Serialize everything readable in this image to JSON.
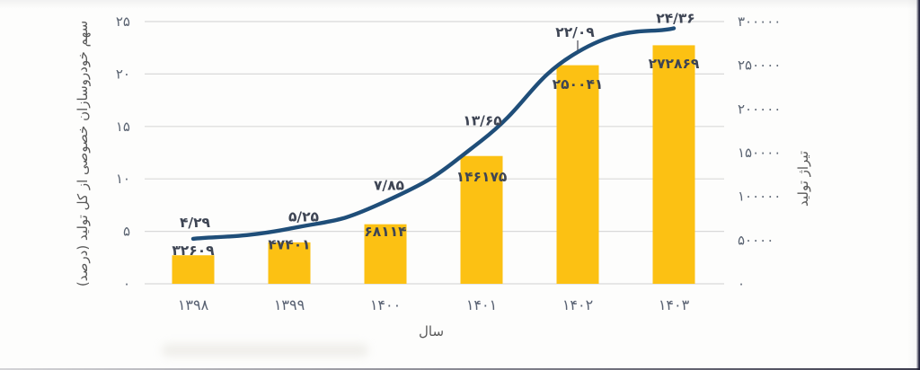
{
  "page": {
    "background": "#fdfdfc",
    "bezel_color": "#24243e"
  },
  "chart_data": {
    "type": "combo",
    "title": "",
    "legend": "none",
    "grid": true,
    "categories": [
      "۱۳۹۸",
      "۱۳۹۹",
      "۱۴۰۰",
      "۱۴۰۱",
      "۱۴۰۲",
      "۱۴۰۳"
    ],
    "x_axis": {
      "title": "سال"
    },
    "left_axis": {
      "title": "سهم خودروسازان خصوصی از کل تولید (درصد)",
      "range": [
        0,
        25
      ],
      "tick_values": [
        25,
        20,
        15,
        10,
        5,
        0
      ],
      "tick_labels": [
        "۲۵",
        "۲۰",
        "۱۵",
        "۱۰",
        "۵",
        "۰"
      ]
    },
    "right_axis": {
      "title": "تیراژ تولید",
      "range": [
        0,
        300000
      ],
      "tick_values": [
        300000,
        250000,
        200000,
        150000,
        100000,
        50000,
        0
      ],
      "tick_labels": [
        "۳۰۰۰۰۰",
        "۲۵۰۰۰۰",
        "۲۰۰۰۰۰",
        "۱۵۰۰۰۰",
        "۱۰۰۰۰۰",
        "۵۰۰۰۰",
        "۰"
      ]
    },
    "series": [
      {
        "name": "تیراژ تولید",
        "type": "bar",
        "axis": "right",
        "color": "#fcc113",
        "values": [
          32609,
          47401,
          68114,
          146175,
          250041,
          272869
        ],
        "labels": [
          "۳۲۶۰۹",
          "۴۷۴۰۱",
          "۶۸۱۱۴",
          "۱۴۶۱۷۵",
          "۲۵۰۰۴۱",
          "۲۷۲۸۶۹"
        ]
      },
      {
        "name": "سهم خودروسازان خصوصی از کل تولید",
        "type": "line",
        "axis": "left",
        "color": "#1f4e79",
        "values": [
          4.29,
          5.25,
          7.85,
          13.65,
          22.09,
          24.36
        ],
        "labels": [
          "۴/۲۹",
          "۵/۲۵",
          "۷/۸۵",
          "۱۳/۶۵",
          "۲۲/۰۹",
          "۲۴/۳۶"
        ]
      }
    ],
    "styles": {
      "grid_color": "#d9d9d9",
      "tick_color": "#5b6472",
      "category_color": "#596273",
      "data_label_color": "#3e4554",
      "axis_title_color": "#595959",
      "leader_color": "#4a4a55"
    }
  }
}
